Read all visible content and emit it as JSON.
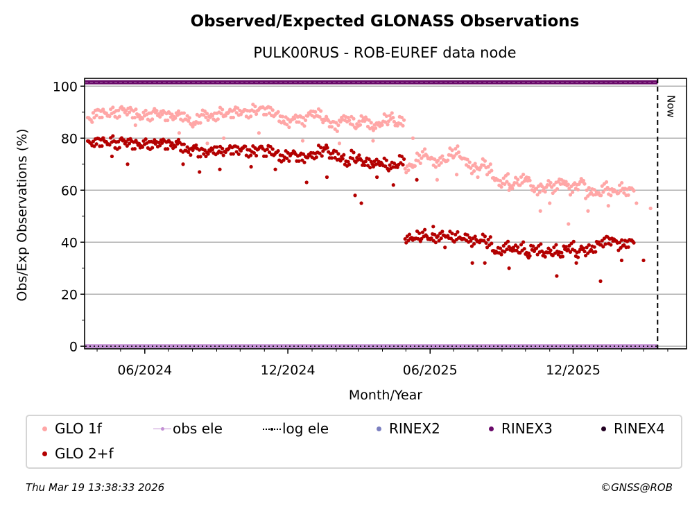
{
  "header": {
    "title": "Observed/Expected GLONASS Observations",
    "subtitle": "PULK00RUS - ROB-EUREF data node"
  },
  "footer": {
    "timestamp": "Thu Mar 19 13:38:33 2026",
    "copyright": "©GNSS@ROB"
  },
  "colors": {
    "glo1f": "#ffa6a6",
    "glo2f": "#b30000",
    "obs_ele": "#c390d4",
    "log_ele": "#000000",
    "rinex2": "#7b7fc0",
    "rinex3": "#6a0a6a",
    "rinex4": "#220022",
    "grid": "#b0b0b0"
  },
  "legend": {
    "items": [
      {
        "label": "GLO 1f",
        "icon": "dot-marker",
        "color": "#ffa6a6"
      },
      {
        "label": "obs ele",
        "icon": "line-dot-marker",
        "color": "#c390d4"
      },
      {
        "label": "log ele",
        "icon": "dotted-line-marker",
        "color": "#000000"
      },
      {
        "label": "RINEX2",
        "icon": "dot-marker",
        "color": "#7b7fc0"
      },
      {
        "label": "RINEX3",
        "icon": "dot-marker",
        "color": "#6a0a6a"
      },
      {
        "label": "RINEX4",
        "icon": "dot-marker",
        "color": "#220022"
      },
      {
        "label": "GLO 2+f",
        "icon": "dot-marker",
        "color": "#b30000"
      }
    ]
  },
  "chart_data": {
    "type": "scatter",
    "title": "Observed/Expected GLONASS Observations",
    "subtitle": "PULK00RUS - ROB-EUREF data node",
    "xlabel": "Month/Year",
    "ylabel": "Obs/Exp Observations (%)",
    "x_tick_labels": [
      "06/2024",
      "12/2024",
      "06/2025",
      "12/2025"
    ],
    "x_ticks": [
      "2024-06-01",
      "2024-12-01",
      "2025-06-01",
      "2025-12-01"
    ],
    "x_minor_ticks": "monthly",
    "xlim": [
      "2024-03-16",
      "2026-04-25"
    ],
    "y_ticks": [
      0,
      20,
      40,
      60,
      80,
      100
    ],
    "y_minor_ticks": [
      10,
      30,
      50,
      70,
      90
    ],
    "ylim": [
      -1,
      103
    ],
    "grid": "horizontal",
    "now_marker": {
      "label": "Now",
      "date": "2026-03-19"
    },
    "legend_position": "bottom",
    "start_date": "2024-03-20",
    "step_days": 7,
    "series": [
      {
        "name": "GLO 1f",
        "color": "#ffa6a6",
        "values": [
          87,
          89,
          90,
          89,
          90,
          90,
          91,
          90,
          90,
          88,
          89,
          89,
          90,
          89,
          89,
          88,
          89,
          89,
          87,
          85,
          88,
          89,
          88,
          89,
          90,
          89,
          90,
          90,
          90,
          90,
          91,
          91,
          91,
          90,
          89,
          88,
          86,
          87,
          88,
          86,
          89,
          90,
          89,
          87,
          86,
          84,
          87,
          88,
          86,
          85,
          88,
          85,
          84,
          86,
          87,
          88,
          86,
          86,
          68,
          70,
          72,
          74,
          73,
          70,
          71,
          72,
          74,
          75,
          73,
          70,
          68,
          69,
          70,
          68,
          65,
          62,
          64,
          62,
          63,
          64,
          65,
          60,
          60,
          61,
          62,
          61,
          64,
          62,
          60,
          62,
          63,
          59,
          60,
          58,
          61,
          60,
          59,
          61,
          60,
          60
        ],
        "outliers": [
          [
            "2024-04-10",
            80
          ],
          [
            "2024-05-20",
            85
          ],
          [
            "2024-07-15",
            82
          ],
          [
            "2024-08-20",
            78
          ],
          [
            "2024-09-10",
            80
          ],
          [
            "2024-10-25",
            82
          ],
          [
            "2024-12-20",
            79
          ],
          [
            "2025-01-15",
            76
          ],
          [
            "2025-02-05",
            78
          ],
          [
            "2025-03-01",
            73
          ],
          [
            "2025-03-20",
            79
          ],
          [
            "2025-05-10",
            80
          ],
          [
            "2025-06-10",
            64
          ],
          [
            "2025-07-05",
            66
          ],
          [
            "2025-08-01",
            65
          ],
          [
            "2025-09-10",
            60
          ],
          [
            "2025-10-20",
            52
          ],
          [
            "2025-11-01",
            55
          ],
          [
            "2025-11-25",
            47
          ],
          [
            "2025-12-20",
            52
          ],
          [
            "2026-01-15",
            54
          ],
          [
            "2026-02-20",
            55
          ],
          [
            "2026-03-10",
            53
          ]
        ]
      },
      {
        "name": "GLO 2+f",
        "color": "#b30000",
        "values": [
          78,
          78,
          79,
          78,
          79,
          78,
          79,
          78,
          78,
          77,
          78,
          78,
          78,
          78,
          78,
          77,
          78,
          77,
          75,
          76,
          75,
          74,
          75,
          76,
          75,
          75,
          76,
          75,
          76,
          75,
          75,
          76,
          75,
          75,
          74,
          73,
          73,
          74,
          73,
          72,
          73,
          74,
          75,
          76,
          74,
          73,
          72,
          71,
          73,
          72,
          71,
          70,
          70,
          71,
          70,
          69,
          70,
          71,
          41,
          42,
          42,
          43,
          42,
          41,
          42,
          43,
          42,
          42,
          42,
          41,
          40,
          41,
          41,
          40,
          37,
          36,
          38,
          38,
          37,
          38,
          36,
          37,
          37,
          36,
          36,
          37,
          36,
          37,
          38,
          36,
          37,
          37,
          38,
          39,
          40,
          41,
          40,
          39,
          40,
          40
        ],
        "outliers": [
          [
            "2024-04-20",
            73
          ],
          [
            "2024-05-10",
            70
          ],
          [
            "2024-07-20",
            70
          ],
          [
            "2024-08-10",
            67
          ],
          [
            "2024-09-05",
            68
          ],
          [
            "2024-10-15",
            69
          ],
          [
            "2024-11-15",
            68
          ],
          [
            "2024-12-25",
            63
          ],
          [
            "2025-01-20",
            65
          ],
          [
            "2025-02-25",
            58
          ],
          [
            "2025-03-05",
            55
          ],
          [
            "2025-03-25",
            65
          ],
          [
            "2025-04-15",
            62
          ],
          [
            "2025-05-15",
            64
          ],
          [
            "2025-06-05",
            46
          ],
          [
            "2025-06-20",
            38
          ],
          [
            "2025-07-25",
            32
          ],
          [
            "2025-08-10",
            32
          ],
          [
            "2025-09-10",
            30
          ],
          [
            "2025-10-05",
            34
          ],
          [
            "2025-11-10",
            27
          ],
          [
            "2025-12-05",
            32
          ],
          [
            "2026-01-05",
            25
          ],
          [
            "2026-02-01",
            33
          ],
          [
            "2026-03-01",
            33
          ]
        ]
      },
      {
        "name": "RINEX3",
        "color": "#6a0a6a",
        "constant": 101.5,
        "range": [
          "2024-03-16",
          "2026-03-19"
        ]
      },
      {
        "name": "obs ele",
        "color": "#c390d4",
        "constant": 0,
        "range": [
          "2024-03-16",
          "2026-03-19"
        ]
      },
      {
        "name": "log ele",
        "color": "#000000",
        "constant": 0,
        "range": [
          "2024-03-16",
          "2026-03-19"
        ]
      }
    ]
  }
}
